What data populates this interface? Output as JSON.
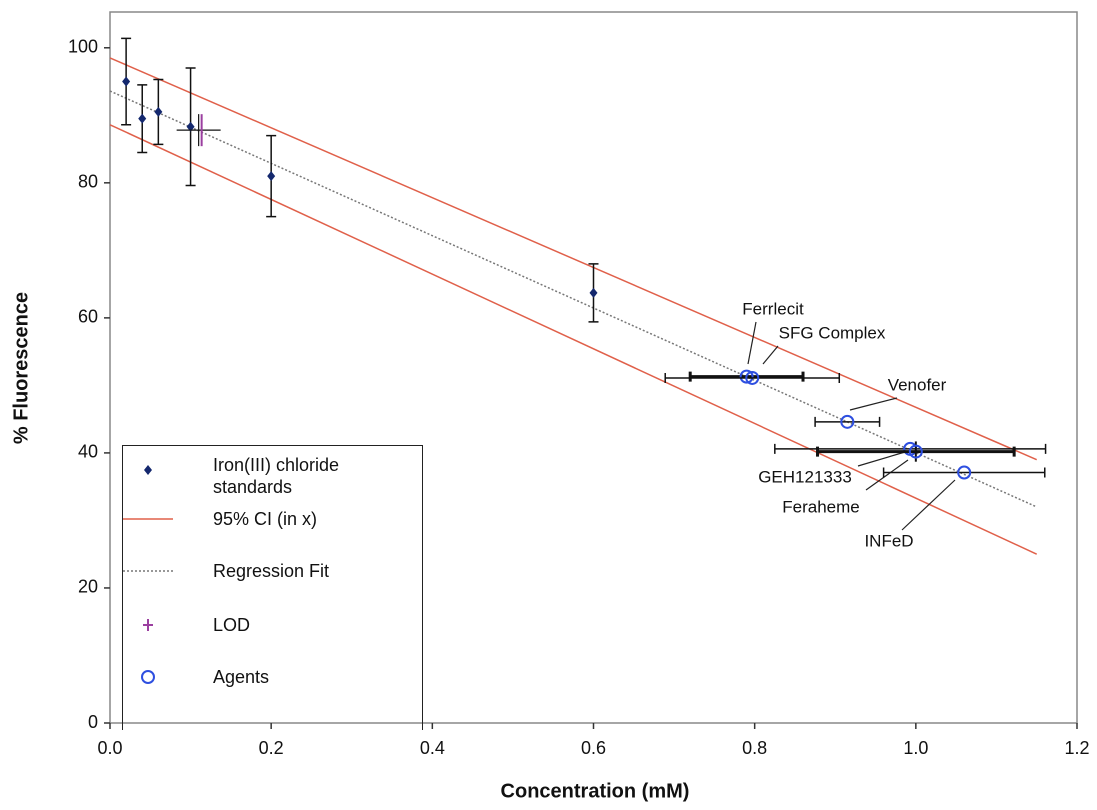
{
  "chart_data": {
    "type": "scatter",
    "x_label": "Concentration (mM)",
    "y_label": "% Fluorescence",
    "xlim": [
      0,
      1.2
    ],
    "ylim": [
      0,
      105.3
    ],
    "xticks": [
      {
        "value": 0,
        "label": "0.0"
      },
      0.2,
      0.4,
      0.6,
      0.8,
      {
        "value": 1,
        "label": "1.0"
      },
      1.2
    ],
    "yticks": [
      0,
      20,
      40,
      60,
      80,
      100
    ],
    "series": [
      {
        "name": "Iron(III) chloride standards",
        "color": "#14286e",
        "x": [
          0.02,
          0.04,
          0.06,
          0.1,
          0.2,
          0.6
        ],
        "values": [
          95,
          89.5,
          90.5,
          88.3,
          81,
          63.7
        ],
        "yerr": [
          6.4,
          5,
          4.8,
          8.7,
          6,
          4.3
        ]
      },
      {
        "name": "95% CI (in x)",
        "color": "#e0604a",
        "x": [
          0,
          1.15
        ],
        "upper": [
          98.5,
          39
        ],
        "lower": [
          88.6,
          25
        ]
      },
      {
        "name": "Regression Fit",
        "color": "#777777",
        "x": [
          0,
          1.15
        ],
        "values": [
          93.6,
          32
        ]
      },
      {
        "name": "LOD",
        "color": "#9b3fa0",
        "x": [
          0.11
        ],
        "values": [
          87.8
        ]
      },
      {
        "name": "Agents",
        "color": "#2e4fe0",
        "labels": [
          "Ferrlecit",
          "SFG Complex",
          "Venofer",
          "GEH121333",
          "Feraheme",
          "INFeD"
        ],
        "x": [
          0.79,
          0.797,
          0.915,
          0.993,
          1.0,
          1.06
        ],
        "values": [
          51.3,
          51.1,
          44.6,
          40.6,
          40.2,
          37.1
        ],
        "xerr": [
          0.07,
          0.108,
          0.04,
          0.168,
          0.122,
          0.1
        ],
        "yerr": [
          0,
          0,
          0,
          0,
          1.5,
          0
        ]
      }
    ]
  }
}
